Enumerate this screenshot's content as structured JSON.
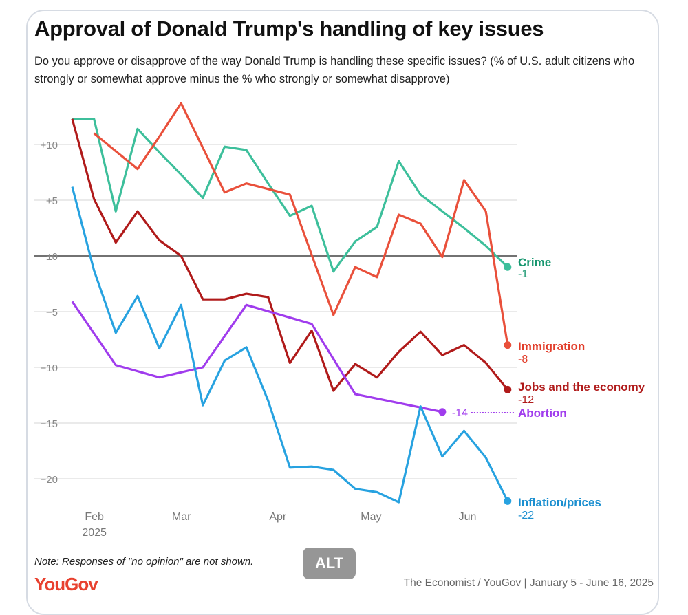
{
  "chart_data": {
    "type": "line",
    "title": "Approval of Donald Trump's handling of key issues",
    "subtitle": "Do you approve or disapprove of the way Donald Trump is handling these specific issues? (% of U.S. adult citizens who strongly or somewhat approve minus the % who strongly or somewhat disapprove)",
    "ylim": [
      -23,
      14
    ],
    "y_ticks": [
      {
        "v": 10,
        "label": "+10"
      },
      {
        "v": 5,
        "label": "+5"
      },
      {
        "v": 0,
        "label": "±0"
      },
      {
        "v": -5,
        "label": "−5"
      },
      {
        "v": -10,
        "label": "−10"
      },
      {
        "v": -15,
        "label": "−15"
      },
      {
        "v": -20,
        "label": "−20"
      }
    ],
    "x_ticks": [
      {
        "date": "2025-02-01",
        "label": "Feb",
        "sub": "2025"
      },
      {
        "date": "2025-03-01",
        "label": "Mar"
      },
      {
        "date": "2025-04-01",
        "label": "Apr"
      },
      {
        "date": "2025-05-01",
        "label": "May"
      },
      {
        "date": "2025-06-01",
        "label": "Jun"
      }
    ],
    "grid": true,
    "x": [
      "2025-01-26",
      "2025-02-02",
      "2025-02-09",
      "2025-02-16",
      "2025-02-23",
      "2025-03-02",
      "2025-03-09",
      "2025-03-16",
      "2025-03-23",
      "2025-03-30",
      "2025-04-06",
      "2025-04-13",
      "2025-04-20",
      "2025-04-27",
      "2025-05-04",
      "2025-05-11",
      "2025-05-18",
      "2025-05-25",
      "2025-06-01",
      "2025-06-08",
      "2025-06-15"
    ],
    "series": [
      {
        "name": "Crime",
        "end_label": "-1",
        "color": "#3dbf9b",
        "label_color": "#17966f",
        "values": [
          12.3,
          12.3,
          4.0,
          11.4,
          9.3,
          7.3,
          5.2,
          9.8,
          9.5,
          6.5,
          3.6,
          4.5,
          -1.4,
          1.3,
          2.6,
          8.5,
          5.5,
          4.0,
          2.5,
          0.9,
          -1
        ]
      },
      {
        "name": "Immigration",
        "end_label": "-8",
        "color": "#e9503b",
        "label_color": "#e23d2a",
        "values": [
          null,
          11.0,
          9.4,
          7.8,
          10.7,
          13.7,
          9.7,
          5.7,
          6.5,
          6.0,
          5.5,
          0.1,
          -5.3,
          -1.0,
          -1.9,
          3.7,
          2.9,
          -0.1,
          6.8,
          4.0,
          -8
        ]
      },
      {
        "name": "Jobs and the economy",
        "end_label": "-12",
        "color": "#b01a1a",
        "label_color": "#b01a1a",
        "values": [
          12.3,
          5.1,
          1.2,
          4.0,
          1.4,
          0.0,
          -3.9,
          -3.9,
          -3.4,
          -3.7,
          -9.6,
          -6.7,
          -12.1,
          -9.7,
          -10.9,
          -8.6,
          -6.8,
          -8.9,
          -8.0,
          -9.6,
          -12
        ]
      },
      {
        "name": "Abortion",
        "end_label": "-14",
        "color": "#a03ced",
        "label_color": "#a03ced",
        "values": [
          -4.1,
          null,
          -9.8,
          null,
          -10.9,
          null,
          -10.0,
          null,
          -4.4,
          null,
          null,
          -6.1,
          null,
          -12.4,
          null,
          null,
          null,
          -14,
          null,
          null,
          null
        ]
      },
      {
        "name": "Inflation/prices",
        "end_label": "-22",
        "color": "#27a2e0",
        "label_color": "#1b8fd0",
        "values": [
          6.2,
          -1.3,
          -6.9,
          -3.6,
          -8.3,
          -4.4,
          -13.4,
          -9.4,
          -8.2,
          -13.0,
          -19.0,
          -18.9,
          -19.2,
          -20.9,
          -21.2,
          -22.1,
          -13.5,
          -18.0,
          -15.7,
          -18.1,
          -22
        ]
      }
    ]
  },
  "note": "Note: Responses of \"no opinion\" are not shown.",
  "logo": "YouGov",
  "source": "The Economist / YouGov | January 5 - June 16, 2025",
  "alt_badge": "ALT"
}
